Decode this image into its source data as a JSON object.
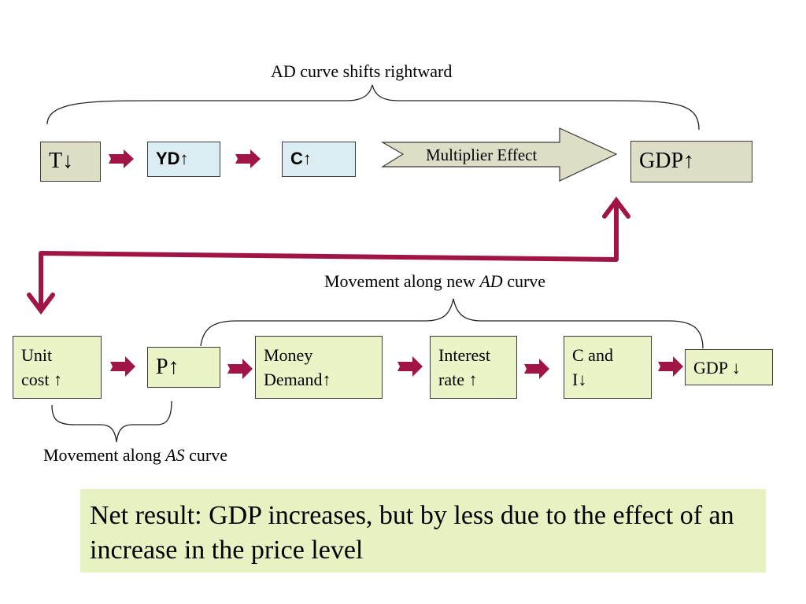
{
  "top_row": {
    "brace_label": "AD curve shifts  rightward",
    "box_t": "T↓",
    "box_yd": "YD↑",
    "box_c": "C↑",
    "multiplier": "Multiplier Effect",
    "box_gdp": "GDP↑"
  },
  "bottom_row": {
    "brace_label_prefix": "Movement along new ",
    "brace_label_em": "AD",
    "brace_label_suffix": " curve",
    "unit_cost_line1": "Unit",
    "unit_cost_line2": "cost ↑",
    "price": "P↑",
    "money_demand_line1": "Money",
    "money_demand_line2": "Demand↑",
    "interest_line1": "Interest",
    "interest_line2": "rate ↑",
    "ci_line1": "C and",
    "ci_line2": "I↓",
    "gdp_down": "GDP ↓",
    "as_label_prefix": "Movement along ",
    "as_label_em": "AS",
    "as_label_suffix": " curve"
  },
  "net_result": "Net result: GDP increases, but by less due to the effect of an increase in the price level",
  "colors": {
    "arrow": "#a01545",
    "box_tan": "#deddc6",
    "box_blue": "#dcedf1",
    "box_green": "#eaf4c7",
    "net_bg": "#e6f2c2"
  }
}
